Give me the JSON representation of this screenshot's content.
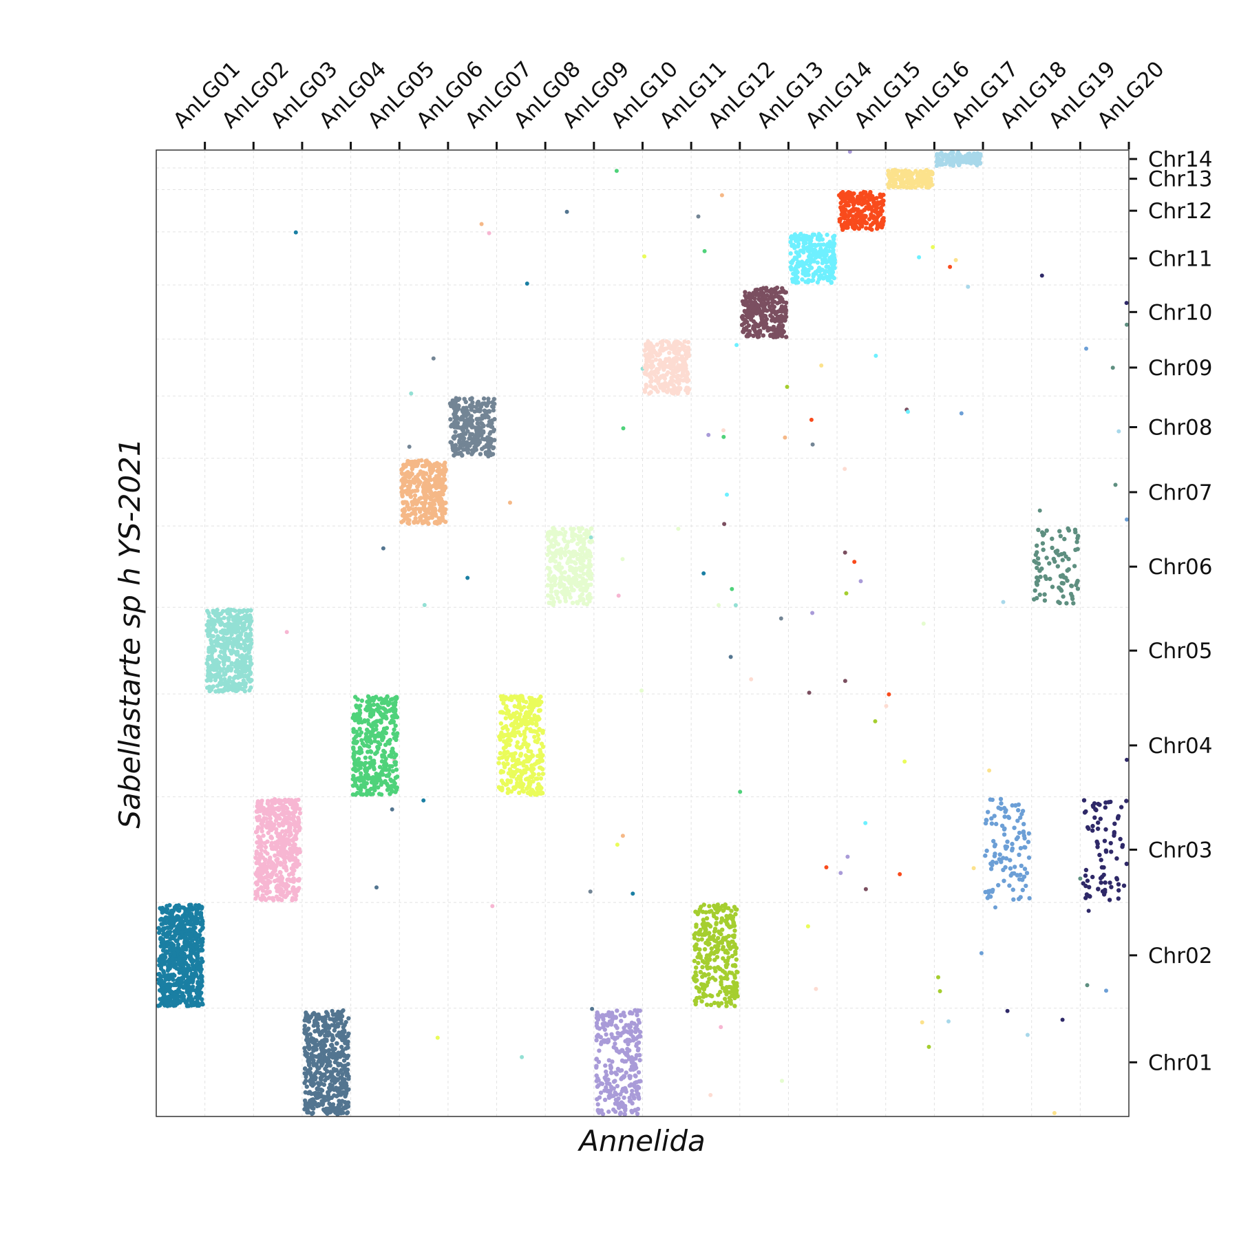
{
  "chart_data": {
    "type": "scatter",
    "title": "",
    "xlabel": "Annelida",
    "ylabel": "Sabellastarte sp h YS-2021",
    "x_axis_position": "top",
    "y_axis_position": "right",
    "grid": true,
    "x_categories": [
      "AnLG01",
      "AnLG02",
      "AnLG03",
      "AnLG04",
      "AnLG05",
      "AnLG06",
      "AnLG07",
      "AnLG08",
      "AnLG09",
      "AnLG10",
      "AnLG11",
      "AnLG12",
      "AnLG13",
      "AnLG14",
      "AnLG15",
      "AnLG16",
      "AnLG17",
      "AnLG18",
      "AnLG19",
      "AnLG20"
    ],
    "y_categories": [
      "Chr01",
      "Chr02",
      "Chr03",
      "Chr04",
      "Chr05",
      "Chr06",
      "Chr07",
      "Chr08",
      "Chr09",
      "Chr10",
      "Chr11",
      "Chr12",
      "Chr13",
      "Chr14"
    ],
    "y_relative_sizes": [
      2.0,
      1.95,
      1.95,
      1.9,
      1.6,
      1.5,
      1.25,
      1.15,
      1.05,
      1.0,
      0.98,
      0.78,
      0.4,
      0.33
    ],
    "series": [
      {
        "x_category": "AnLG01",
        "y_category": "Chr02",
        "color": "#1a7fa3",
        "n_points": 700
      },
      {
        "x_category": "AnLG02",
        "y_category": "Chr05",
        "color": "#93e0d4",
        "n_points": 500
      },
      {
        "x_category": "AnLG03",
        "y_category": "Chr03",
        "color": "#f7b6d2",
        "n_points": 520
      },
      {
        "x_category": "AnLG04",
        "y_category": "Chr01",
        "color": "#537590",
        "n_points": 520
      },
      {
        "x_category": "AnLG05",
        "y_category": "Chr04",
        "color": "#4fd27a",
        "n_points": 400
      },
      {
        "x_category": "AnLG06",
        "y_category": "Chr07",
        "color": "#f5b887",
        "n_points": 360
      },
      {
        "x_category": "AnLG07",
        "y_category": "Chr08",
        "color": "#738595",
        "n_points": 300
      },
      {
        "x_category": "AnLG08",
        "y_category": "Chr04",
        "color": "#eafc5a",
        "n_points": 380
      },
      {
        "x_category": "AnLG09",
        "y_category": "Chr06",
        "color": "#e5fccf",
        "n_points": 320
      },
      {
        "x_category": "AnLG10",
        "y_category": "Chr01",
        "color": "#a99bd8",
        "n_points": 300
      },
      {
        "x_category": "AnLG11",
        "y_category": "Chr09",
        "color": "#fddcd2",
        "n_points": 280
      },
      {
        "x_category": "AnLG12",
        "y_category": "Chr02",
        "color": "#a5ce2f",
        "n_points": 300
      },
      {
        "x_category": "AnLG13",
        "y_category": "Chr10",
        "color": "#7b4f60",
        "n_points": 280
      },
      {
        "x_category": "AnLG14",
        "y_category": "Chr11",
        "color": "#6ef0ff",
        "n_points": 260
      },
      {
        "x_category": "AnLG15",
        "y_category": "Chr12",
        "color": "#f94b1c",
        "n_points": 240
      },
      {
        "x_category": "AnLG16",
        "y_category": "Chr13",
        "color": "#fce28c",
        "n_points": 150
      },
      {
        "x_category": "AnLG17",
        "y_category": "Chr14",
        "color": "#a8d8ea",
        "n_points": 120
      },
      {
        "x_category": "AnLG18",
        "y_category": "Chr03",
        "color": "#6c9fd6",
        "n_points": 110
      },
      {
        "x_category": "AnLG19",
        "y_category": "Chr06",
        "color": "#5e8f80",
        "n_points": 90
      },
      {
        "x_category": "AnLG20",
        "y_category": "Chr03",
        "color": "#2f2968",
        "n_points": 80
      }
    ],
    "scatter_noise_points_per_series": 6
  }
}
